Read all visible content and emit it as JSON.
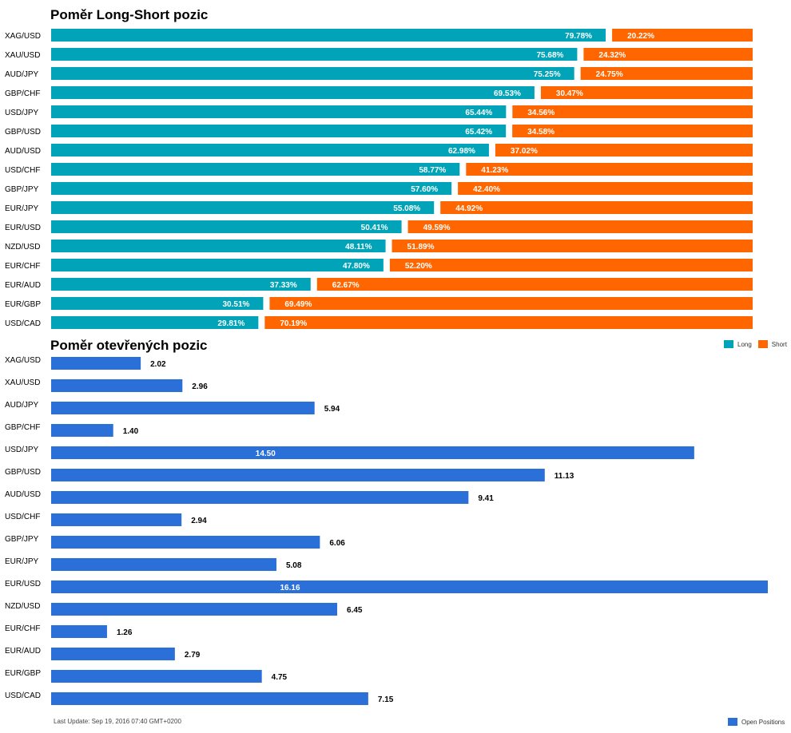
{
  "colors": {
    "long": "#00a3b8",
    "short": "#ff6600",
    "open": "#2b6fd9"
  },
  "long_short": {
    "title": "Poměr Long-Short pozic",
    "legend": {
      "long": "Long",
      "short": "Short"
    }
  },
  "open_positions": {
    "title": "Poměr otevřených pozic",
    "legend": {
      "open": "Open Positions"
    }
  },
  "footer": "Last Update: Sep 19, 2016 07:40 GMT+0200",
  "chart_data": [
    {
      "type": "bar",
      "orientation": "horizontal",
      "stacked": "percent",
      "title": "Poměr Long-Short pozic",
      "categories": [
        "XAG/USD",
        "XAU/USD",
        "AUD/JPY",
        "GBP/CHF",
        "USD/JPY",
        "GBP/USD",
        "AUD/USD",
        "USD/CHF",
        "GBP/JPY",
        "EUR/JPY",
        "EUR/USD",
        "NZD/USD",
        "EUR/CHF",
        "EUR/AUD",
        "EUR/GBP",
        "USD/CAD"
      ],
      "series": [
        {
          "name": "Long",
          "values": [
            79.78,
            75.68,
            75.25,
            69.53,
            65.44,
            65.42,
            62.98,
            58.77,
            57.6,
            55.08,
            50.41,
            48.11,
            47.8,
            37.33,
            30.51,
            29.81
          ]
        },
        {
          "name": "Short",
          "values": [
            20.22,
            24.32,
            24.75,
            30.47,
            34.56,
            34.58,
            37.02,
            41.23,
            42.4,
            44.92,
            49.59,
            51.89,
            52.2,
            62.67,
            69.49,
            70.19
          ]
        }
      ],
      "value_labels": {
        "Long": [
          "79.78%",
          "75.68%",
          "75.25%",
          "69.53%",
          "65.44%",
          "65.42%",
          "62.98%",
          "58.77%",
          "57.60%",
          "55.08%",
          "50.41%",
          "48.11%",
          "47.80%",
          "37.33%",
          "30.51%",
          "29.81%"
        ],
        "Short": [
          "20.22%",
          "24.32%",
          "24.75%",
          "30.47%",
          "34.56%",
          "34.58%",
          "37.02%",
          "41.23%",
          "42.40%",
          "44.92%",
          "49.59%",
          "51.89%",
          "52.20%",
          "62.67%",
          "69.49%",
          "70.19%"
        ]
      },
      "legend_position": "bottom-right",
      "grid": false
    },
    {
      "type": "bar",
      "orientation": "horizontal",
      "title": "Poměr otevřených pozic",
      "categories": [
        "XAG/USD",
        "XAU/USD",
        "AUD/JPY",
        "GBP/CHF",
        "USD/JPY",
        "GBP/USD",
        "AUD/USD",
        "USD/CHF",
        "GBP/JPY",
        "EUR/JPY",
        "EUR/USD",
        "NZD/USD",
        "EUR/CHF",
        "EUR/AUD",
        "EUR/GBP",
        "USD/CAD"
      ],
      "series": [
        {
          "name": "Open Positions",
          "values": [
            2.02,
            2.96,
            5.94,
            1.4,
            14.5,
            11.13,
            9.41,
            2.94,
            6.06,
            5.08,
            16.16,
            6.45,
            1.26,
            2.79,
            4.75,
            7.15
          ]
        }
      ],
      "value_labels": [
        "2.02",
        "2.96",
        "5.94",
        "1.40",
        "14.50",
        "11.13",
        "9.41",
        "2.94",
        "6.06",
        "5.08",
        "16.16",
        "6.45",
        "1.26",
        "2.79",
        "4.75",
        "7.15"
      ],
      "xlim": [
        0,
        16.16
      ],
      "legend_position": "bottom-right",
      "grid": false
    }
  ]
}
